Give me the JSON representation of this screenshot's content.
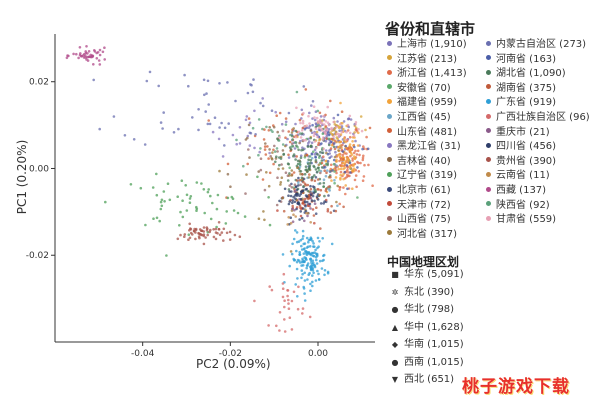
{
  "chart_data": {
    "type": "scatter",
    "title": "",
    "xlabel": "PC2 (0.09%)",
    "ylabel": "PC1 (0.20%)",
    "xlim": [
      -0.06,
      0.013
    ],
    "ylim": [
      -0.04,
      0.031
    ],
    "x_ticks": [
      "-0.04",
      "-0.02",
      "0.00"
    ],
    "x_tick_values": [
      -0.04,
      -0.02,
      0.0
    ],
    "y_ticks": [
      "0.02",
      "0.00",
      "-0.02"
    ],
    "y_tick_values": [
      0.02,
      0.0,
      -0.02
    ],
    "grid": false,
    "legend_position": "right",
    "series": [
      {
        "name": "上海市 (1,910)",
        "color": "#7b72b8",
        "cx": 0.001,
        "cy": 0.007,
        "sx": 0.004,
        "sy": 0.003,
        "n": 140
      },
      {
        "name": "江苏省 (213)",
        "color": "#d6a43a",
        "cx": 0.004,
        "cy": 0.009,
        "sx": 0.004,
        "sy": 0.002,
        "n": 35
      },
      {
        "name": "浙江省 (1,413)",
        "color": "#e06b4a",
        "cx": 0.007,
        "cy": 0.002,
        "sx": 0.002,
        "sy": 0.003,
        "n": 120
      },
      {
        "name": "安徽省 (70)",
        "color": "#5aa86a",
        "cx": 0.0,
        "cy": 0.001,
        "sx": 0.004,
        "sy": 0.003,
        "n": 25
      },
      {
        "name": "福建省 (959)",
        "color": "#f2a33a",
        "cx": 0.006,
        "cy": 0.002,
        "sx": 0.002,
        "sy": 0.004,
        "n": 80
      },
      {
        "name": "江西省 (45)",
        "color": "#6aa6c8",
        "cx": 0.0,
        "cy": -0.004,
        "sx": 0.003,
        "sy": 0.003,
        "n": 20
      },
      {
        "name": "山东省 (481)",
        "color": "#d2603a",
        "cx": -0.005,
        "cy": 0.006,
        "sx": 0.007,
        "sy": 0.005,
        "n": 60
      },
      {
        "name": "黑龙江省 (31)",
        "color": "#8877c0",
        "cx": -0.015,
        "cy": 0.009,
        "sx": 0.004,
        "sy": 0.003,
        "n": 18
      },
      {
        "name": "吉林省 (40)",
        "color": "#8c6a4a",
        "cx": -0.012,
        "cy": 0.004,
        "sx": 0.006,
        "sy": 0.004,
        "n": 18
      },
      {
        "name": "辽宁省 (319)",
        "color": "#4fa05a",
        "cx": -0.03,
        "cy": -0.008,
        "sx": 0.008,
        "sy": 0.003,
        "n": 60
      },
      {
        "name": "北京市 (61)",
        "color": "#3b4a7a",
        "cx": -0.002,
        "cy": -0.007,
        "sx": 0.003,
        "sy": 0.003,
        "n": 22
      },
      {
        "name": "天津市 (72)",
        "color": "#c24a3a",
        "cx": -0.003,
        "cy": -0.009,
        "sx": 0.003,
        "sy": 0.002,
        "n": 22
      },
      {
        "name": "山西省 (75)",
        "color": "#9a6a6a",
        "cx": -0.008,
        "cy": -0.001,
        "sx": 0.005,
        "sy": 0.005,
        "n": 22
      },
      {
        "name": "河北省 (317)",
        "color": "#9c7a3a",
        "cx": -0.005,
        "cy": -0.002,
        "sx": 0.006,
        "sy": 0.006,
        "n": 50
      },
      {
        "name": "内蒙古自治区 (273)",
        "color": "#6a6fb0",
        "cx": -0.025,
        "cy": 0.015,
        "sx": 0.01,
        "sy": 0.005,
        "n": 50
      },
      {
        "name": "河南省 (163)",
        "color": "#4b5ea8",
        "cx": 0.002,
        "cy": 0.003,
        "sx": 0.004,
        "sy": 0.004,
        "n": 35
      },
      {
        "name": "湖北省 (1,090)",
        "color": "#4a7a5a",
        "cx": -0.003,
        "cy": 0.001,
        "sx": 0.003,
        "sy": 0.004,
        "n": 100
      },
      {
        "name": "湖南省 (375)",
        "color": "#c05a3a",
        "cx": -0.001,
        "cy": -0.006,
        "sx": 0.003,
        "sy": 0.003,
        "n": 50
      },
      {
        "name": "广东省 (919)",
        "color": "#2f9fd6",
        "cx": -0.002,
        "cy": -0.021,
        "sx": 0.002,
        "sy": 0.003,
        "n": 150
      },
      {
        "name": "广西壮族自治区 (96)",
        "color": "#d46a6a",
        "cx": -0.007,
        "cy": -0.031,
        "sx": 0.002,
        "sy": 0.003,
        "n": 30
      },
      {
        "name": "重庆市 (21)",
        "color": "#8a5a8a",
        "cx": -0.004,
        "cy": -0.009,
        "sx": 0.002,
        "sy": 0.002,
        "n": 12
      },
      {
        "name": "四川省 (456)",
        "color": "#2e3e6a",
        "cx": -0.004,
        "cy": -0.007,
        "sx": 0.002,
        "sy": 0.002,
        "n": 60
      },
      {
        "name": "贵州省 (390)",
        "color": "#a8534a",
        "cx": -0.026,
        "cy": -0.015,
        "sx": 0.003,
        "sy": 0.001,
        "n": 60
      },
      {
        "name": "云南省 (11)",
        "color": "#c08a4a",
        "cx": -0.005,
        "cy": -0.011,
        "sx": 0.002,
        "sy": 0.002,
        "n": 8
      },
      {
        "name": "西藏 (137)",
        "color": "#b04a8a",
        "cx": -0.052,
        "cy": 0.026,
        "sx": 0.002,
        "sy": 0.0008,
        "n": 45
      },
      {
        "name": "陕西省 (92)",
        "color": "#5aa07a",
        "cx": -0.01,
        "cy": 0.006,
        "sx": 0.006,
        "sy": 0.004,
        "n": 25
      },
      {
        "name": "甘肃省 (559)",
        "color": "#e7a0b4",
        "cx": 0.001,
        "cy": 0.009,
        "sx": 0.004,
        "sy": 0.002,
        "n": 70
      }
    ]
  },
  "legend": {
    "province_title": "省份和直辖市",
    "provinces_left": [
      {
        "label": "上海市 (1,910)",
        "color": "#7b72b8"
      },
      {
        "label": "江苏省 (213)",
        "color": "#d6a43a"
      },
      {
        "label": "浙江省 (1,413)",
        "color": "#e06b4a"
      },
      {
        "label": "安徽省 (70)",
        "color": "#5aa86a"
      },
      {
        "label": "福建省 (959)",
        "color": "#f2a33a"
      },
      {
        "label": "江西省 (45)",
        "color": "#6aa6c8"
      },
      {
        "label": "山东省 (481)",
        "color": "#d2603a"
      },
      {
        "label": "黑龙江省 (31)",
        "color": "#8877c0"
      },
      {
        "label": "吉林省 (40)",
        "color": "#8c6a4a"
      },
      {
        "label": "辽宁省 (319)",
        "color": "#4fa05a"
      },
      {
        "label": "北京市 (61)",
        "color": "#3b4a7a"
      },
      {
        "label": "天津市 (72)",
        "color": "#c24a3a"
      },
      {
        "label": "山西省 (75)",
        "color": "#9a6a6a"
      },
      {
        "label": "河北省 (317)",
        "color": "#9c7a3a"
      }
    ],
    "provinces_right": [
      {
        "label": "内蒙古自治区 (273)",
        "color": "#6a6fb0"
      },
      {
        "label": "河南省 (163)",
        "color": "#4b5ea8"
      },
      {
        "label": "湖北省 (1,090)",
        "color": "#4a7a5a"
      },
      {
        "label": "湖南省 (375)",
        "color": "#c05a3a"
      },
      {
        "label": "广东省 (919)",
        "color": "#2f9fd6"
      },
      {
        "label": "广西壮族自治区 (96)",
        "color": "#d46a6a"
      },
      {
        "label": "重庆市 (21)",
        "color": "#8a5a8a"
      },
      {
        "label": "四川省 (456)",
        "color": "#2e3e6a"
      },
      {
        "label": "贵州省 (390)",
        "color": "#a8534a"
      },
      {
        "label": "云南省 (11)",
        "color": "#c08a4a"
      },
      {
        "label": "西藏 (137)",
        "color": "#b04a8a"
      },
      {
        "label": "陕西省 (92)",
        "color": "#5aa07a"
      },
      {
        "label": "甘肃省 (559)",
        "color": "#e7a0b4"
      }
    ],
    "region_title": "中国地理区划",
    "regions": [
      {
        "label": "华东 (5,091)",
        "shape": "■"
      },
      {
        "label": "东北 (390)",
        "shape": "✲"
      },
      {
        "label": "华北 (798)",
        "shape": "●"
      },
      {
        "label": "华中 (1,628)",
        "shape": "▲"
      },
      {
        "label": "华南 (1,015)",
        "shape": "◆"
      },
      {
        "label": "西南 (1,015)",
        "shape": "●"
      },
      {
        "label": "西北 (651)",
        "shape": "▼"
      }
    ]
  },
  "watermark": "桃子游戏下载"
}
